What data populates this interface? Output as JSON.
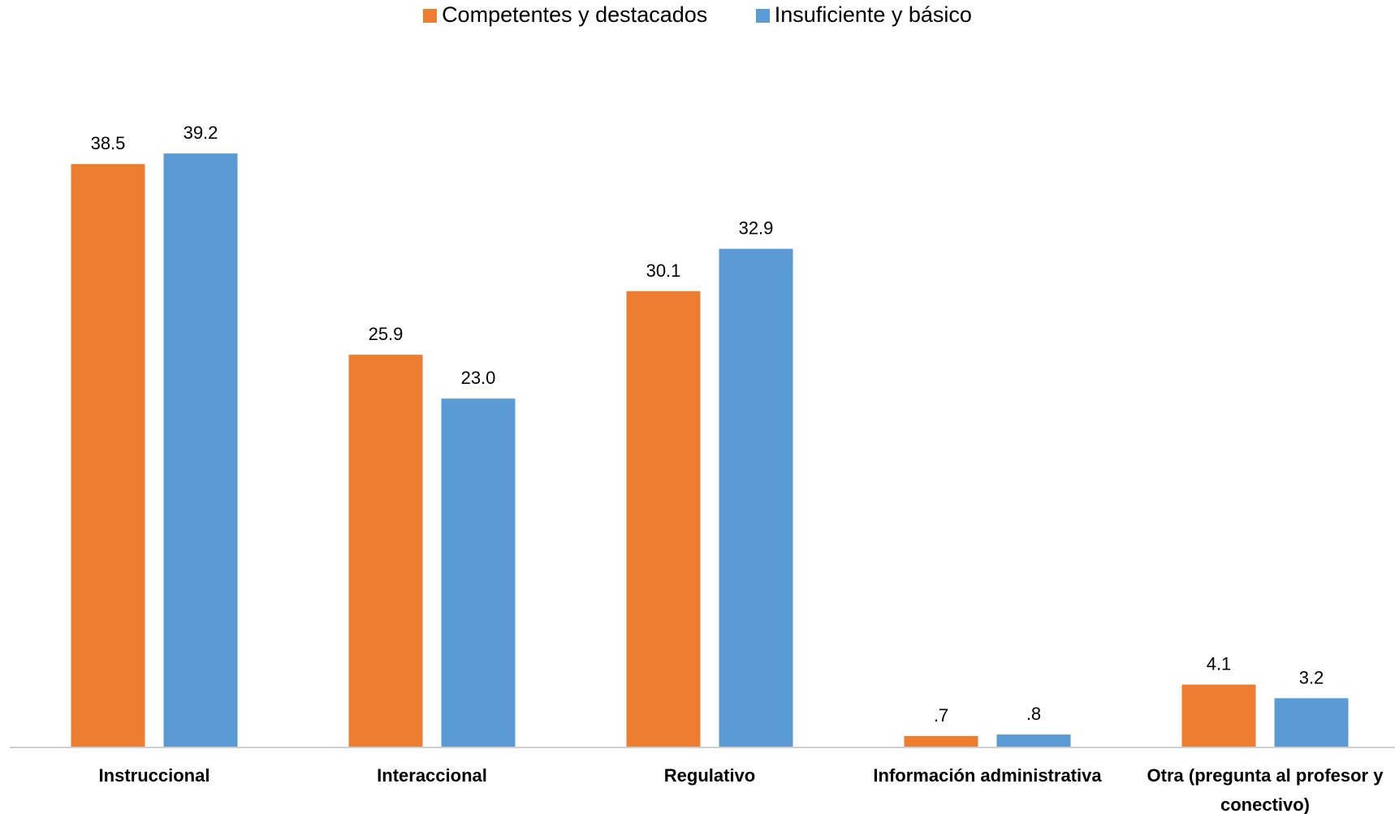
{
  "chart_data": {
    "type": "bar",
    "categories": [
      [
        "Instruccional"
      ],
      [
        "Interaccional"
      ],
      [
        "Regulativo"
      ],
      [
        "Información administrativa"
      ],
      [
        "Otra (pregunta al profesor y",
        "conectivo)"
      ]
    ],
    "series": [
      {
        "name": "Competentes y destacados",
        "color": "#ED7D31",
        "values": [
          38.5,
          25.9,
          30.1,
          0.7,
          4.1
        ],
        "labels": [
          "38.5",
          "25.9",
          "30.1",
          ".7",
          "4.1"
        ]
      },
      {
        "name": "Insuficiente y básico",
        "color": "#5B9BD5",
        "values": [
          39.2,
          23.0,
          32.9,
          0.8,
          3.2
        ],
        "labels": [
          "39.2",
          "23.0",
          "32.9",
          ".8",
          "3.2"
        ]
      }
    ],
    "ylim": [
      0,
      40
    ],
    "legend_position": "top-center",
    "grid": false
  }
}
